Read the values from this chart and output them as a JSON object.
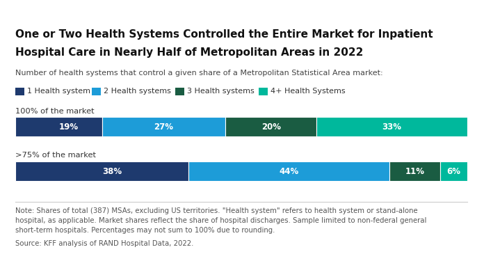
{
  "title_line1": "One or Two Health Systems Controlled the Entire Market for Inpatient",
  "title_line2": "Hospital Care in Nearly Half of Metropolitan Areas in 2022",
  "subtitle": "Number of health systems that control a given share of a Metropolitan Statistical Area market:",
  "legend_labels": [
    "1 Health system",
    "2 Health systems",
    "3 Health systems",
    "4+ Health Systems"
  ],
  "colors": [
    "#1e3a6e",
    "#1d9cd8",
    "#1a5c42",
    "#00b89c"
  ],
  "bar_labels": [
    "100% of the market",
    ">75% of the market"
  ],
  "rows": [
    [
      19,
      27,
      20,
      33
    ],
    [
      38,
      44,
      11,
      6
    ]
  ],
  "note_lines": [
    "Note: Shares of total (387) MSAs, excluding US territories. \"Health system\" refers to health system or stand-alone",
    "hospital, as applicable. Market shares reflect the share of hospital discharges. Sample limited to non-federal general",
    "short-term hospitals. Percentages may not sum to 100% due to rounding."
  ],
  "source": "Source: KFF analysis of RAND Hospital Data, 2022.",
  "background_color": "#ffffff"
}
